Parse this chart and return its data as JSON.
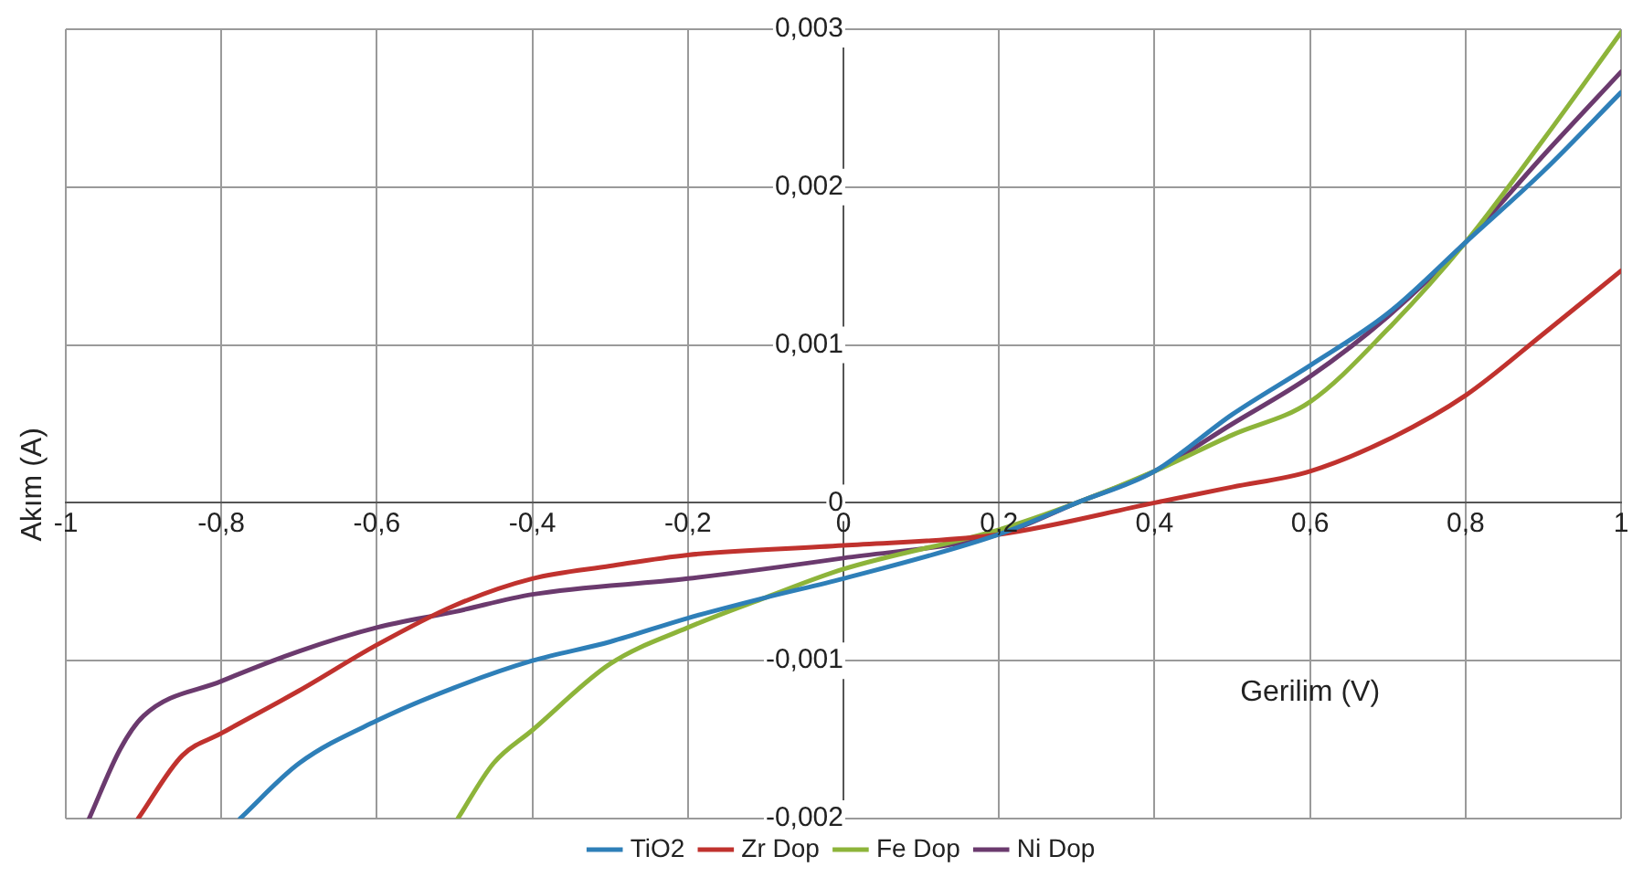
{
  "chart_data": {
    "type": "line",
    "xlabel": "Gerilim (V)",
    "ylabel": "Akım (A)",
    "xlim": [
      -1,
      1
    ],
    "xticks": [
      -1,
      {
        "value": -0.8,
        "label": "-0,8"
      },
      {
        "value": -0.6,
        "label": "-0,6"
      },
      {
        "value": -0.4,
        "label": "-0,4"
      },
      {
        "value": -0.2,
        "label": "-0,2"
      },
      0,
      {
        "value": 0.2,
        "label": "0,2"
      },
      {
        "value": 0.4,
        "label": "0,4"
      },
      {
        "value": 0.6,
        "label": "0,6"
      },
      {
        "value": 0.8,
        "label": "0,8"
      },
      1
    ],
    "ylim": [
      -0.002,
      0.003
    ],
    "yticks": [
      {
        "value": -0.002,
        "label": "-0,002"
      },
      {
        "value": -0.001,
        "label": "-0,001"
      },
      0,
      {
        "value": 0.001,
        "label": "0,001"
      },
      {
        "value": 0.002,
        "label": "0,002"
      },
      {
        "value": 0.003,
        "label": "0,003"
      }
    ],
    "grid": true,
    "legend": "bottom",
    "marker": "none",
    "line_style": "solid",
    "series": [
      {
        "name": "TiO2",
        "color": "#2e7fb8",
        "x": [
          -0.776,
          -0.7,
          -0.6,
          -0.5,
          -0.4,
          -0.3,
          -0.2,
          -0.1,
          0,
          0.2,
          0.3,
          0.4,
          0.5,
          0.6,
          0.7,
          0.8,
          0.9,
          1
        ],
        "values": [
          -0.002,
          -0.00165,
          -0.00138,
          -0.00117,
          -0.001,
          -0.00088,
          -0.00073,
          -0.0006,
          -0.00048,
          -0.0002,
          0,
          0.0002,
          0.00056,
          0.00087,
          0.0012,
          0.00165,
          0.0021,
          0.0026
        ]
      },
      {
        "name": "Zr Dop",
        "color": "#c0322e",
        "x": [
          -0.907,
          -0.85,
          -0.8,
          -0.7,
          -0.6,
          -0.5,
          -0.4,
          -0.3,
          -0.2,
          0,
          0.2,
          0.4,
          0.5,
          0.6,
          0.7,
          0.8,
          0.9,
          1
        ],
        "values": [
          -0.002,
          -0.0016,
          -0.00146,
          -0.00119,
          -0.0009,
          -0.00065,
          -0.00048,
          -0.0004,
          -0.00033,
          -0.00027,
          -0.0002,
          0,
          0.0001,
          0.0002,
          0.0004,
          0.00068,
          0.00107,
          0.00147
        ]
      },
      {
        "name": "Fe Dop",
        "color": "#8db43a",
        "x": [
          -0.496,
          -0.45,
          -0.4,
          -0.3,
          -0.2,
          -0.1,
          0,
          0.2,
          0.3,
          0.4,
          0.5,
          0.6,
          0.7,
          0.8,
          0.9,
          1
        ],
        "values": [
          -0.002,
          -0.00165,
          -0.00144,
          -0.00102,
          -0.00079,
          -0.0006,
          -0.00042,
          -0.00017,
          0,
          0.0002,
          0.00043,
          0.00064,
          0.0011,
          0.00165,
          0.0023,
          0.00298
        ]
      },
      {
        "name": "Ni Dop",
        "color": "#6b3a6e",
        "x": [
          -0.97,
          -0.93,
          -0.9,
          -0.8,
          -0.7,
          -0.6,
          -0.5,
          -0.4,
          -0.2,
          0,
          0.2,
          0.3,
          0.4,
          0.5,
          0.6,
          0.7,
          0.8,
          0.9,
          1
        ],
        "values": [
          -0.002,
          -0.00156,
          -0.00135,
          -0.00113,
          -0.00094,
          -0.00079,
          -0.00069,
          -0.00058,
          -0.00048,
          -0.00035,
          -0.0002,
          0,
          0.0002,
          0.0005,
          0.0008,
          0.00118,
          0.00165,
          0.0022,
          0.00273
        ]
      }
    ]
  }
}
